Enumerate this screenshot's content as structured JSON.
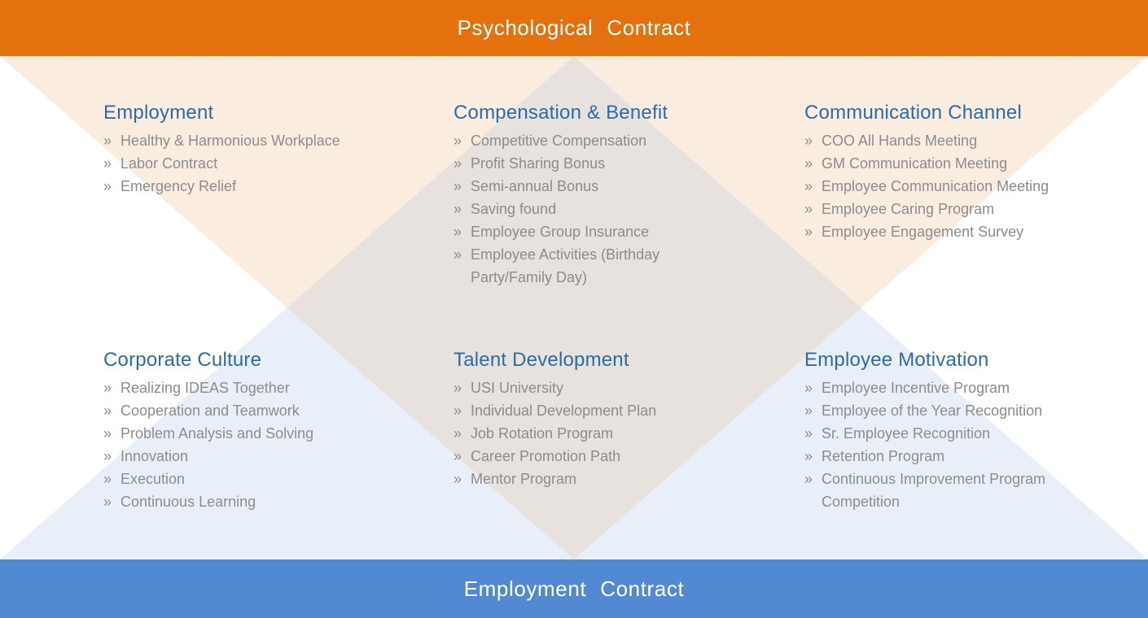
{
  "slide": {
    "top_banner": {
      "words": [
        "Psychological",
        "Contract"
      ]
    },
    "bottom_banner": {
      "words": [
        "Employment",
        "Contract"
      ]
    }
  },
  "bullet_glyph": "»",
  "colors": {
    "top_banner_bg": "#E4710E",
    "bottom_banner_bg": "#5389D3",
    "banner_text": "#FFFFFF",
    "section_heading": "#2B6CA8",
    "body_text": "#8C8C8C",
    "peach_triangle": "#FBECE0",
    "blue_triangle": "#E9EFF9",
    "center_diamond": "#E7E2DD",
    "background": "#FFFFFF"
  },
  "sections": [
    {
      "title": "Employment",
      "items": [
        "Healthy & Harmonious Workplace",
        "Labor Contract",
        "Emergency Relief"
      ]
    },
    {
      "title": "Compensation & Benefit",
      "items": [
        "Competitive Compensation",
        "Profit Sharing Bonus",
        "Semi-annual Bonus",
        "Saving found",
        "Employee Group Insurance",
        "Employee Activities (Birthday Party/Family Day)"
      ]
    },
    {
      "title": "Communication Channel",
      "items": [
        "COO All Hands Meeting",
        "GM Communication Meeting",
        "Employee Communication Meeting",
        "Employee Caring Program",
        "Employee Engagement Survey"
      ]
    },
    {
      "title": "Corporate Culture",
      "items": [
        "Realizing IDEAS Together",
        "Cooperation and Teamwork",
        "Problem Analysis and Solving",
        "Innovation",
        "Execution",
        "Continuous Learning"
      ]
    },
    {
      "title": "Talent Development",
      "items": [
        "USI University",
        "Individual Development Plan",
        "Job Rotation Program",
        "Career Promotion Path",
        "Mentor Program"
      ]
    },
    {
      "title": "Employee Motivation",
      "items": [
        "Employee Incentive Program",
        "Employee of the Year Recognition",
        "Sr. Employee Recognition",
        "Retention Program",
        "Continuous Improvement Program Competition"
      ]
    }
  ]
}
